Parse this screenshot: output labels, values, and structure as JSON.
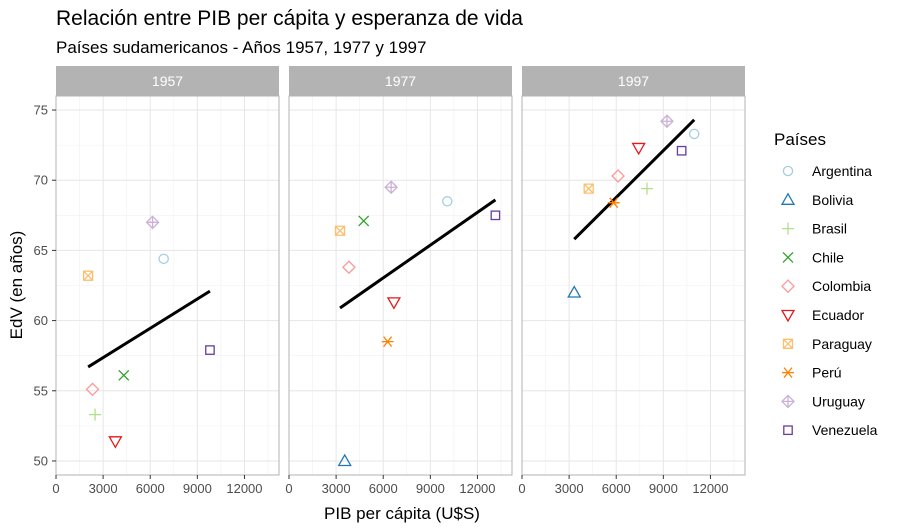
{
  "chart_data": {
    "type": "scatter",
    "title": "Relación entre PIB per cápita y esperanza de vida",
    "subtitle": "Países sudamericanos - Años 1957, 1977 y 1997",
    "xlabel": "PIB per cápita (U$S)",
    "ylabel": "EdV (en años)",
    "xlim": [
      0,
      14200
    ],
    "ylim": [
      49,
      76
    ],
    "x_ticks": [
      0,
      3000,
      6000,
      9000,
      12000
    ],
    "x_tick_labels": [
      "0",
      "3000",
      "6000",
      "9000",
      "12000"
    ],
    "y_ticks": [
      50,
      55,
      60,
      65,
      70,
      75
    ],
    "y_tick_labels": [
      "50",
      "55",
      "60",
      "65",
      "70",
      "75"
    ],
    "grid": true,
    "legend_title": "Países",
    "legend_position": "right",
    "facets": [
      "1957",
      "1977",
      "1997"
    ],
    "series": [
      {
        "name": "Argentina",
        "color": "#a6cee3",
        "shape": "circle",
        "points": {
          "1957": [
            6857,
            64.4
          ],
          "1977": [
            10079,
            68.5
          ],
          "1997": [
            10967,
            73.3
          ]
        }
      },
      {
        "name": "Bolivia",
        "color": "#1f78b4",
        "shape": "triangle-up",
        "points": {
          "1957": null,
          "1977": [
            3548,
            50.0
          ],
          "1997": [
            3326,
            62.0
          ]
        }
      },
      {
        "name": "Brasil",
        "color": "#b2df8a",
        "shape": "plus",
        "points": {
          "1957": [
            2487,
            53.3
          ],
          "1977": null,
          "1997": [
            7958,
            69.4
          ]
        }
      },
      {
        "name": "Chile",
        "color": "#33a02c",
        "shape": "cross",
        "points": {
          "1957": [
            4316,
            56.1
          ],
          "1977": [
            4756,
            67.1
          ],
          "1997": null
        }
      },
      {
        "name": "Colombia",
        "color": "#fb9a99",
        "shape": "diamond",
        "points": {
          "1957": [
            2324,
            55.1
          ],
          "1977": [
            3815,
            63.8
          ],
          "1997": [
            6117,
            70.3
          ]
        }
      },
      {
        "name": "Ecuador",
        "color": "#e31a1c",
        "shape": "triangle-down",
        "points": {
          "1957": [
            3780,
            51.4
          ],
          "1977": [
            6680,
            61.3
          ],
          "1997": [
            7429,
            72.3
          ]
        }
      },
      {
        "name": "Paraguay",
        "color": "#fdbf6f",
        "shape": "square-cross",
        "points": {
          "1957": [
            2047,
            63.2
          ],
          "1977": [
            3249,
            66.4
          ],
          "1997": [
            4247,
            69.4
          ]
        }
      },
      {
        "name": "Perú",
        "color": "#ff7f00",
        "shape": "asterisk",
        "points": {
          "1957": null,
          "1977": [
            6281,
            58.5
          ],
          "1997": [
            5838,
            68.4
          ]
        }
      },
      {
        "name": "Uruguay",
        "color": "#cab2d6",
        "shape": "diamond-plus",
        "points": {
          "1957": [
            6150,
            67.0
          ],
          "1977": [
            6504,
            69.5
          ],
          "1997": [
            9230,
            74.2
          ]
        }
      },
      {
        "name": "Venezuela",
        "color": "#6a3d9a",
        "shape": "square",
        "points": {
          "1957": [
            9803,
            57.9
          ],
          "1977": [
            13143,
            67.5
          ],
          "1997": [
            10165,
            72.1
          ]
        }
      }
    ],
    "trend_lines": {
      "1957": [
        [
          2047,
          56.7
        ],
        [
          9803,
          62.1
        ]
      ],
      "1977": [
        [
          3249,
          60.9
        ],
        [
          13143,
          68.6
        ]
      ],
      "1997": [
        [
          3326,
          65.8
        ],
        [
          10967,
          74.3
        ]
      ]
    }
  }
}
